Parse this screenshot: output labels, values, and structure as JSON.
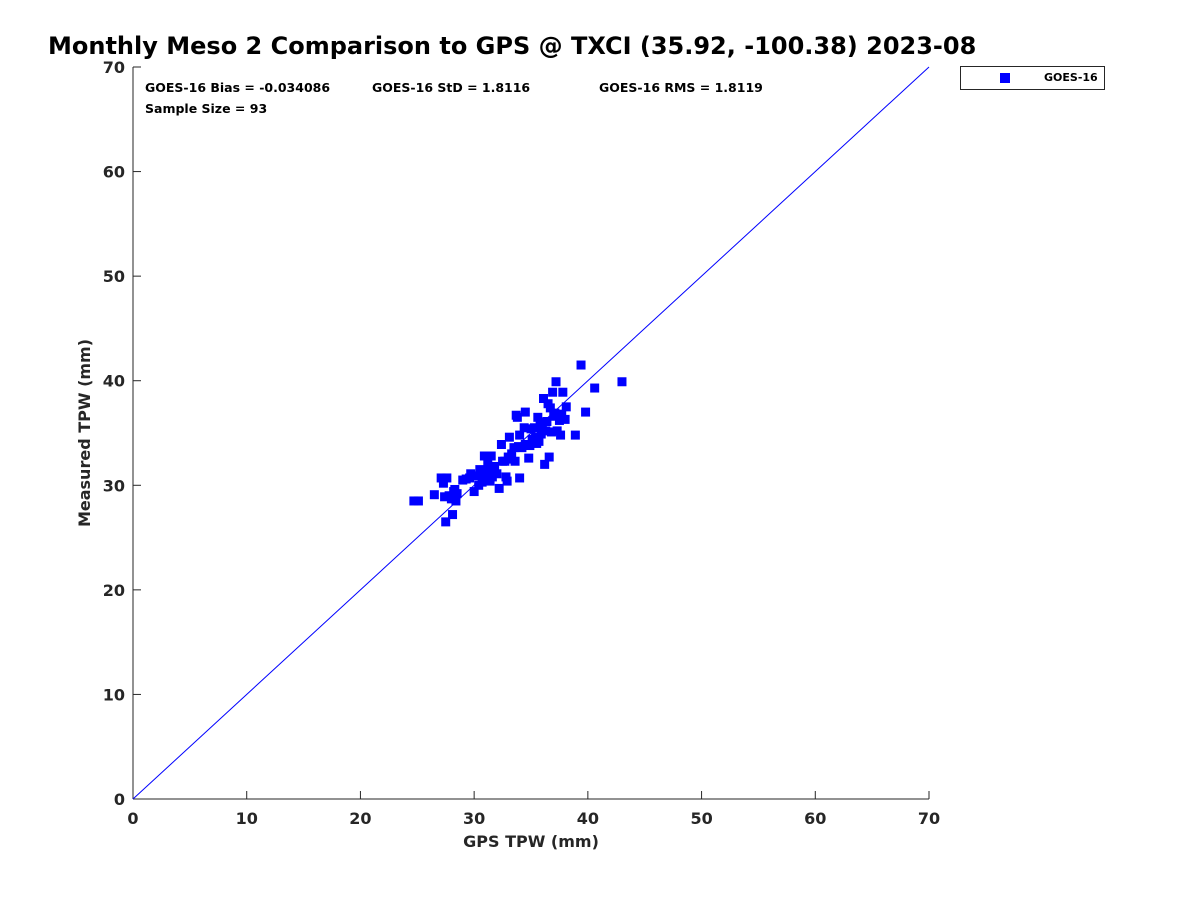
{
  "chart_data": {
    "type": "scatter",
    "title": "Monthly Meso 2 Comparison to GPS @ TXCI (35.92, -100.38) 2023-08",
    "xlabel": "GPS TPW (mm)",
    "ylabel": "Measured TPW (mm)",
    "xlim": [
      0,
      70
    ],
    "ylim": [
      0,
      70
    ],
    "x_ticks": [
      "0",
      "10",
      "20",
      "30",
      "40",
      "50",
      "60",
      "70"
    ],
    "y_ticks": [
      "0",
      "10",
      "20",
      "30",
      "40",
      "50",
      "60",
      "70"
    ],
    "grid": false,
    "legend_position": "outside-top-right",
    "annotations": {
      "bias": "GOES-16 Bias = -0.034086",
      "std": "GOES-16 StD = 1.8116",
      "rms": "GOES-16 RMS = 1.8119",
      "sample": "Sample Size = 93"
    },
    "reference_line": {
      "x": [
        0,
        70
      ],
      "y": [
        0,
        70
      ],
      "color": "#0000ff"
    },
    "series": [
      {
        "name": "GOES-16",
        "color": "#0000ff",
        "marker": "square",
        "points": [
          [
            24.7,
            28.5
          ],
          [
            25.1,
            28.5
          ],
          [
            26.5,
            29.1
          ],
          [
            27.1,
            30.7
          ],
          [
            27.3,
            30.2
          ],
          [
            27.4,
            28.9
          ],
          [
            27.6,
            30.7
          ],
          [
            27.5,
            26.5
          ],
          [
            27.8,
            29.0
          ],
          [
            28.0,
            28.7
          ],
          [
            28.1,
            27.2
          ],
          [
            28.2,
            29.4
          ],
          [
            28.4,
            28.5
          ],
          [
            28.3,
            29.6
          ],
          [
            28.5,
            29.2
          ],
          [
            29.0,
            30.5
          ],
          [
            29.3,
            30.6
          ],
          [
            29.6,
            30.7
          ],
          [
            29.7,
            31.1
          ],
          [
            30.0,
            29.4
          ],
          [
            30.1,
            30.9
          ],
          [
            30.4,
            30.0
          ],
          [
            30.5,
            31.5
          ],
          [
            30.6,
            31.1
          ],
          [
            30.7,
            30.3
          ],
          [
            30.9,
            32.8
          ],
          [
            31.0,
            31.2
          ],
          [
            31.1,
            30.9
          ],
          [
            31.2,
            32.0
          ],
          [
            31.3,
            31.2
          ],
          [
            31.4,
            30.4
          ],
          [
            31.5,
            32.8
          ],
          [
            31.6,
            30.8
          ],
          [
            31.8,
            31.8
          ],
          [
            32.0,
            31.1
          ],
          [
            32.2,
            29.7
          ],
          [
            32.4,
            33.9
          ],
          [
            32.5,
            32.3
          ],
          [
            32.7,
            32.3
          ],
          [
            32.8,
            30.8
          ],
          [
            32.9,
            30.4
          ],
          [
            33.0,
            32.7
          ],
          [
            33.1,
            34.6
          ],
          [
            33.2,
            32.5
          ],
          [
            33.3,
            33.0
          ],
          [
            33.5,
            33.6
          ],
          [
            33.6,
            32.3
          ],
          [
            33.7,
            36.7
          ],
          [
            33.8,
            36.5
          ],
          [
            33.9,
            33.7
          ],
          [
            34.0,
            30.7
          ],
          [
            34.0,
            34.8
          ],
          [
            34.2,
            33.6
          ],
          [
            34.4,
            35.5
          ],
          [
            34.5,
            33.9
          ],
          [
            34.5,
            37.0
          ],
          [
            34.8,
            32.6
          ],
          [
            34.9,
            33.8
          ],
          [
            35.0,
            35.4
          ],
          [
            35.1,
            34.4
          ],
          [
            35.2,
            34.2
          ],
          [
            35.3,
            35.5
          ],
          [
            35.4,
            34.6
          ],
          [
            35.5,
            34.0
          ],
          [
            35.6,
            36.5
          ],
          [
            35.7,
            34.2
          ],
          [
            35.8,
            36.0
          ],
          [
            35.9,
            34.9
          ],
          [
            36.0,
            35.6
          ],
          [
            36.1,
            38.3
          ],
          [
            36.2,
            32.0
          ],
          [
            36.3,
            35.2
          ],
          [
            36.4,
            36.1
          ],
          [
            36.5,
            37.8
          ],
          [
            36.6,
            32.7
          ],
          [
            36.7,
            37.4
          ],
          [
            36.8,
            35.1
          ],
          [
            36.9,
            38.9
          ],
          [
            37.0,
            36.6
          ],
          [
            37.1,
            36.9
          ],
          [
            37.2,
            39.9
          ],
          [
            37.3,
            35.2
          ],
          [
            37.5,
            36.2
          ],
          [
            37.6,
            34.8
          ],
          [
            37.7,
            36.8
          ],
          [
            37.8,
            38.9
          ],
          [
            38.0,
            36.3
          ],
          [
            38.1,
            37.5
          ],
          [
            38.9,
            34.8
          ],
          [
            39.4,
            41.5
          ],
          [
            39.8,
            37.0
          ],
          [
            40.6,
            39.3
          ],
          [
            43.0,
            39.9
          ]
        ]
      }
    ]
  }
}
